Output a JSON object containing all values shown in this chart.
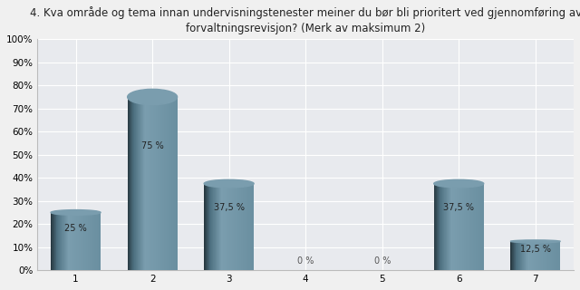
{
  "title_line1": "4. Kva område og tema innan undervisningstenester meiner du bør bli prioritert ved gjennomføring av",
  "title_line2": "forvaltningsrevisjon? (Merk av maksimum 2)",
  "categories": [
    "1",
    "2",
    "3",
    "4",
    "5",
    "6",
    "7"
  ],
  "values": [
    25.0,
    75.0,
    37.5,
    0.0,
    0.0,
    37.5,
    12.5
  ],
  "labels": [
    "25 %",
    "75 %",
    "37,5 %",
    "0 %",
    "0 %",
    "37,5 %",
    "12,5 %"
  ],
  "bar_color_left": "#4d7080",
  "bar_color_mid": "#7a9dae",
  "bar_color_right": "#6a8fa0",
  "background_color": "#f0f0f0",
  "plot_bg_color": "#e8eaee",
  "grid_color": "#ffffff",
  "ylim": [
    0,
    100
  ],
  "yticks": [
    0,
    10,
    20,
    30,
    40,
    50,
    60,
    70,
    80,
    90,
    100
  ],
  "ytick_labels": [
    "0%",
    "10%",
    "20%",
    "30%",
    "40%",
    "50%",
    "60%",
    "70%",
    "80%",
    "90%",
    "100%"
  ],
  "title_fontsize": 8.5,
  "tick_fontsize": 7.5,
  "label_fontsize": 7.0,
  "bar_width": 0.65
}
